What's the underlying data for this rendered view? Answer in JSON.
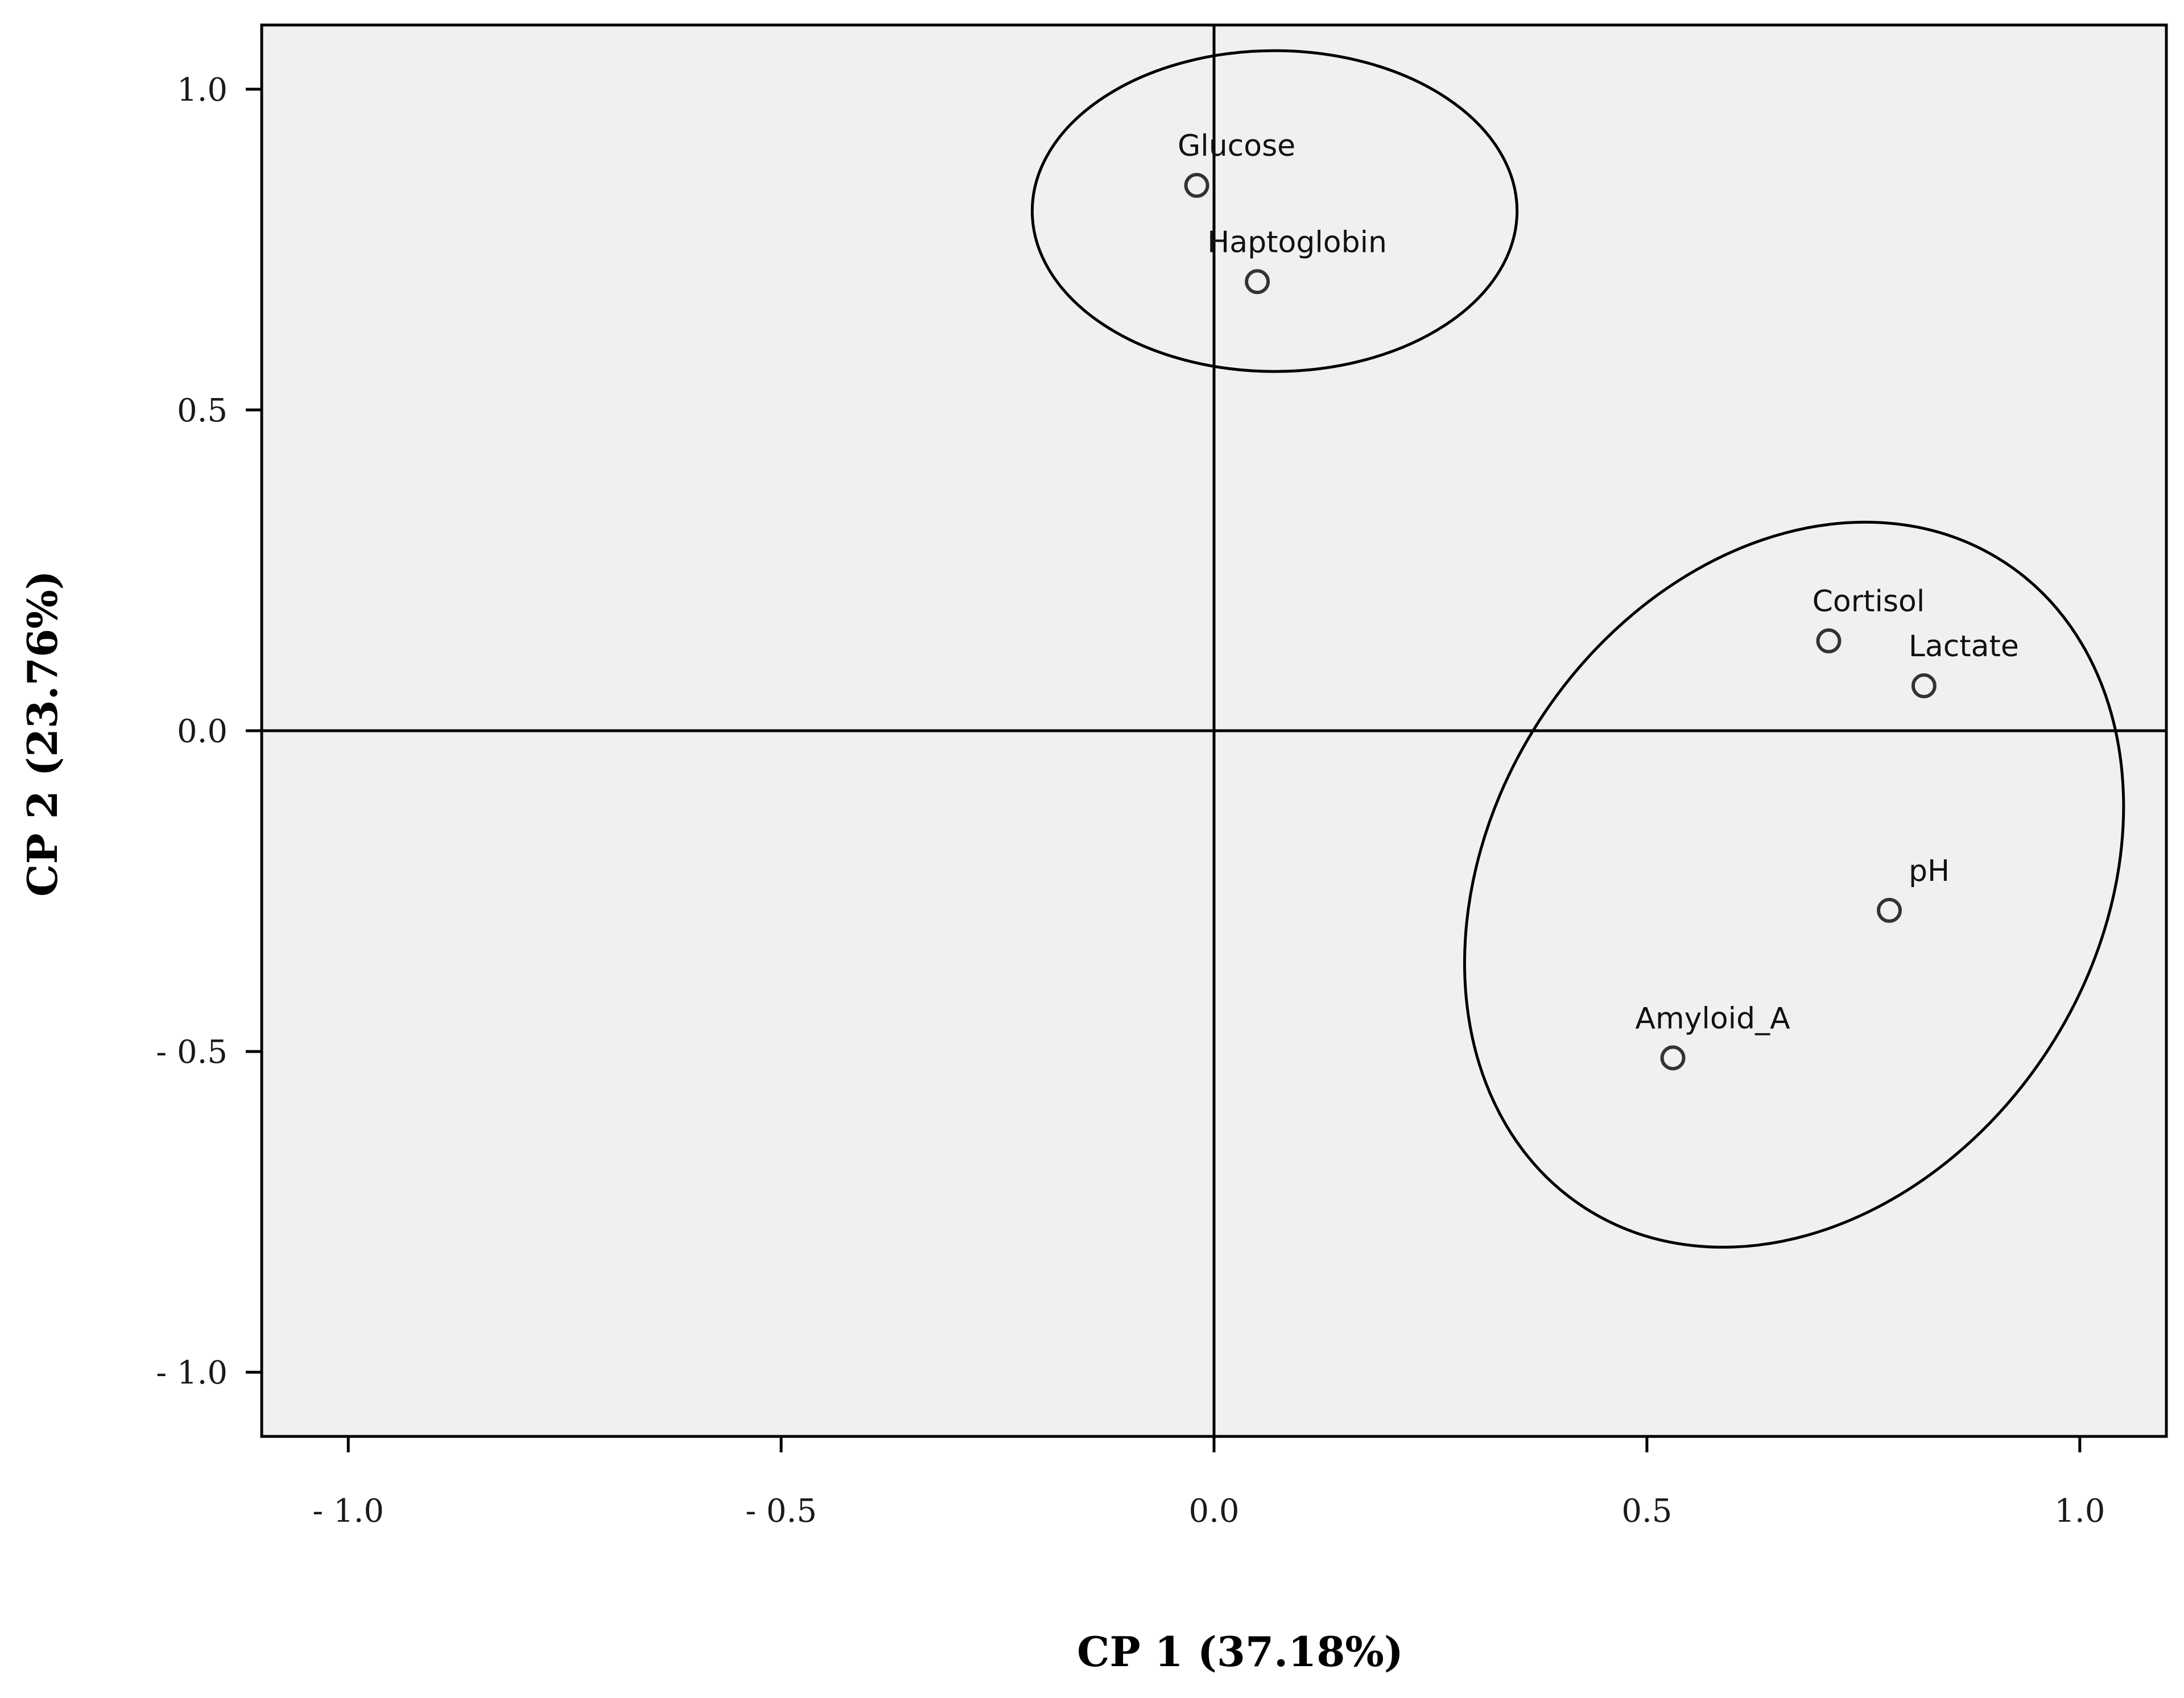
{
  "chart_data": {
    "type": "scatter",
    "xlabel": "CP 1 (37.18%)",
    "ylabel": "CP 2 (23.76%)",
    "xlim": [
      -1.1,
      1.1
    ],
    "ylim": [
      -1.1,
      1.1
    ],
    "xticks": [
      -1.0,
      -0.5,
      0.0,
      0.5,
      1.0
    ],
    "yticks": [
      -1.0,
      -0.5,
      0.0,
      0.5,
      1.0
    ],
    "xtick_labels": [
      "- 1.0",
      "- 0.5",
      "0.0",
      "0.5",
      "1.0"
    ],
    "ytick_labels": [
      "- 1.0",
      "- 0.5",
      "0.0",
      "0.5",
      "1.0"
    ],
    "grid": false,
    "reference_lines": {
      "x": 0,
      "y": 0
    },
    "points": [
      {
        "label": "Glucose",
        "x": -0.02,
        "y": 0.85
      },
      {
        "label": "Haptoglobin",
        "x": 0.05,
        "y": 0.7
      },
      {
        "label": "Cortisol",
        "x": 0.71,
        "y": 0.14
      },
      {
        "label": "Lactate",
        "x": 0.82,
        "y": 0.07
      },
      {
        "label": "pH",
        "x": 0.78,
        "y": -0.28
      },
      {
        "label": "Amyloid_A",
        "x": 0.53,
        "y": -0.51
      }
    ],
    "groups": [
      {
        "members": [
          "Glucose",
          "Haptoglobin"
        ],
        "center": [
          0.07,
          0.81
        ],
        "rx": 0.28,
        "ry": 0.25,
        "rotation": 0
      },
      {
        "members": [
          "Cortisol",
          "Lactate",
          "pH",
          "Amyloid_A"
        ],
        "center": [
          0.67,
          -0.24
        ],
        "rx": 0.35,
        "ry": 0.6,
        "rotation": 33
      }
    ],
    "colors": {
      "plot_background": "#f0f0f0",
      "axes": "#000000",
      "marker_edge": "#333333"
    }
  }
}
